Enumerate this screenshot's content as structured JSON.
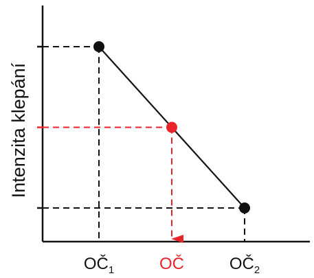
{
  "chart_data": {
    "type": "line",
    "title": "",
    "xlabel": "",
    "ylabel": "Intenzita klepání",
    "grid": false,
    "x_ticks": [
      {
        "base": "OČ",
        "sub": "1",
        "color": "#111111"
      },
      {
        "base": "OČ",
        "sub": "",
        "color": "#e8232a"
      },
      {
        "base": "OČ",
        "sub": "2",
        "color": "#111111"
      }
    ],
    "series": [
      {
        "color": "#111111",
        "points": [
          {
            "x": 0,
            "y": 1.0
          },
          {
            "x": 1,
            "y": 0.0
          }
        ]
      }
    ],
    "interpolated_point": {
      "x": 0.5,
      "y": 0.5,
      "color": "#e8232a"
    },
    "guide_color_default": "#111111",
    "guide_color_highlight": "#e8232a"
  }
}
